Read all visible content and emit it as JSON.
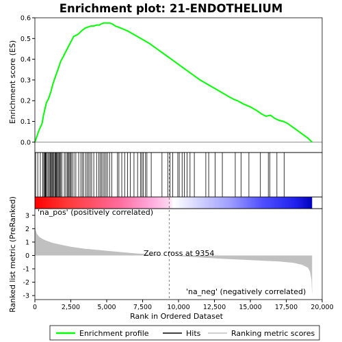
{
  "chart_data": {
    "type": "line",
    "title": "Enrichment plot: 21-ENDOTHELIUM",
    "top_panel": {
      "ylabel": "Enrichment score (ES)",
      "ylim": [
        -0.05,
        0.6
      ],
      "yticks": [
        0.0,
        0.1,
        0.2,
        0.3,
        0.4,
        0.5,
        0.6
      ],
      "ytick_labels": [
        "0.0",
        "0.1",
        "0.2",
        "0.3",
        "0.4",
        "0.5",
        "0.6"
      ],
      "series": [
        {
          "name": "Enrichment profile",
          "color": "#00ff00",
          "x": [
            0,
            150,
            300,
            500,
            600,
            700,
            800,
            950,
            1100,
            1250,
            1350,
            1500,
            1650,
            1800,
            1950,
            2100,
            2250,
            2400,
            2550,
            2700,
            2850,
            3000,
            3150,
            3300,
            3500,
            3700,
            3900,
            4100,
            4300,
            4500,
            4600,
            4800,
            5000,
            5200,
            5400,
            5600,
            5800,
            6000,
            6500,
            7000,
            7500,
            8000,
            8500,
            9000,
            9500,
            10000,
            10500,
            11000,
            11500,
            12000,
            12500,
            13000,
            13500,
            13900,
            14100,
            14500,
            15000,
            15500,
            15800,
            16100,
            16400,
            16700,
            17000,
            17300,
            17600,
            18000,
            18500,
            19000,
            19300
          ],
          "y": [
            0.0,
            0.03,
            0.06,
            0.09,
            0.13,
            0.16,
            0.19,
            0.21,
            0.24,
            0.28,
            0.3,
            0.33,
            0.36,
            0.39,
            0.41,
            0.43,
            0.45,
            0.47,
            0.49,
            0.51,
            0.515,
            0.52,
            0.53,
            0.54,
            0.55,
            0.555,
            0.56,
            0.56,
            0.565,
            0.565,
            0.57,
            0.575,
            0.575,
            0.575,
            0.57,
            0.56,
            0.555,
            0.55,
            0.535,
            0.515,
            0.495,
            0.475,
            0.45,
            0.425,
            0.4,
            0.375,
            0.35,
            0.325,
            0.3,
            0.28,
            0.26,
            0.24,
            0.22,
            0.205,
            0.2,
            0.185,
            0.17,
            0.15,
            0.135,
            0.125,
            0.13,
            0.115,
            0.105,
            0.1,
            0.09,
            0.07,
            0.045,
            0.02,
            0.0
          ]
        }
      ]
    },
    "hits": [
      50,
      200,
      380,
      550,
      620,
      680,
      720,
      760,
      810,
      900,
      980,
      1050,
      1100,
      1150,
      1220,
      1280,
      1330,
      1400,
      1450,
      1500,
      1560,
      1620,
      1680,
      1750,
      1800,
      1880,
      2050,
      2150,
      2250,
      2320,
      2380,
      2450,
      2520,
      2600,
      2720,
      2850,
      3050,
      3200,
      3300,
      3400,
      3550,
      3650,
      3750,
      3850,
      3950,
      4100,
      4300,
      4450,
      4550,
      4650,
      4750,
      4850,
      4950,
      5050,
      5200,
      5350,
      5750,
      5850,
      6050,
      6250,
      6450,
      6650,
      6900,
      7150,
      7350,
      7450,
      7550,
      7700,
      7800,
      8100,
      8850,
      9250,
      9400,
      9600,
      9950,
      10050,
      10250,
      10400,
      10600,
      10800,
      11100,
      11900,
      12100,
      12550,
      13050,
      13950,
      14350,
      14900,
      15700,
      16250,
      16350,
      16850,
      17350
    ],
    "rank_labels": {
      "pos": "'na_pos' (positively correlated)",
      "neg": "'na_neg' (negatively correlated)",
      "zero_cross": "Zero cross at 9354"
    },
    "zero_cross": 9354,
    "bottom_panel": {
      "ylabel": "Ranked list metric (PreRanked)",
      "xlabel": "Rank in Ordered Dataset",
      "ylim": [
        -3.3,
        3.5
      ],
      "yticks": [
        -3,
        -2,
        -1,
        0,
        1,
        2,
        3
      ],
      "ytick_labels": [
        "-3",
        "-2",
        "-1",
        "0",
        "1",
        "2",
        "3"
      ],
      "metric_x": [
        0,
        50,
        150,
        300,
        500,
        800,
        1200,
        1800,
        2500,
        3500,
        5000,
        7000,
        9354,
        11000,
        13000,
        15000,
        17000,
        18000,
        18600,
        19000,
        19150,
        19250,
        19300
      ],
      "metric_y": [
        2.5,
        1.9,
        1.6,
        1.4,
        1.25,
        1.1,
        0.95,
        0.8,
        0.65,
        0.5,
        0.35,
        0.15,
        0.0,
        -0.12,
        -0.25,
        -0.35,
        -0.45,
        -0.55,
        -0.7,
        -0.9,
        -1.2,
        -1.8,
        -3.0
      ]
    },
    "xlim": [
      0,
      20000
    ],
    "xticks": [
      0,
      2500,
      5000,
      7500,
      10000,
      12500,
      15000,
      17500,
      20000
    ],
    "xtick_labels": [
      "0",
      "2,500",
      "5,000",
      "7,500",
      "10,000",
      "12,500",
      "15,000",
      "17,500",
      "20,000"
    ],
    "n_genes": 19300,
    "legend": {
      "placement": "bottom",
      "entries": [
        {
          "label": "Enrichment profile",
          "color": "#00ff00"
        },
        {
          "label": "Hits",
          "color": "#000000"
        },
        {
          "label": "Ranking metric scores",
          "color": "#c0c0c0"
        }
      ]
    },
    "colors": {
      "profile": "#00ff00",
      "metric_fill": "#c0c0c0",
      "pos_label": "#cc0000",
      "neg_label": "#0000cc",
      "zero_cross_line": "#808080"
    }
  }
}
